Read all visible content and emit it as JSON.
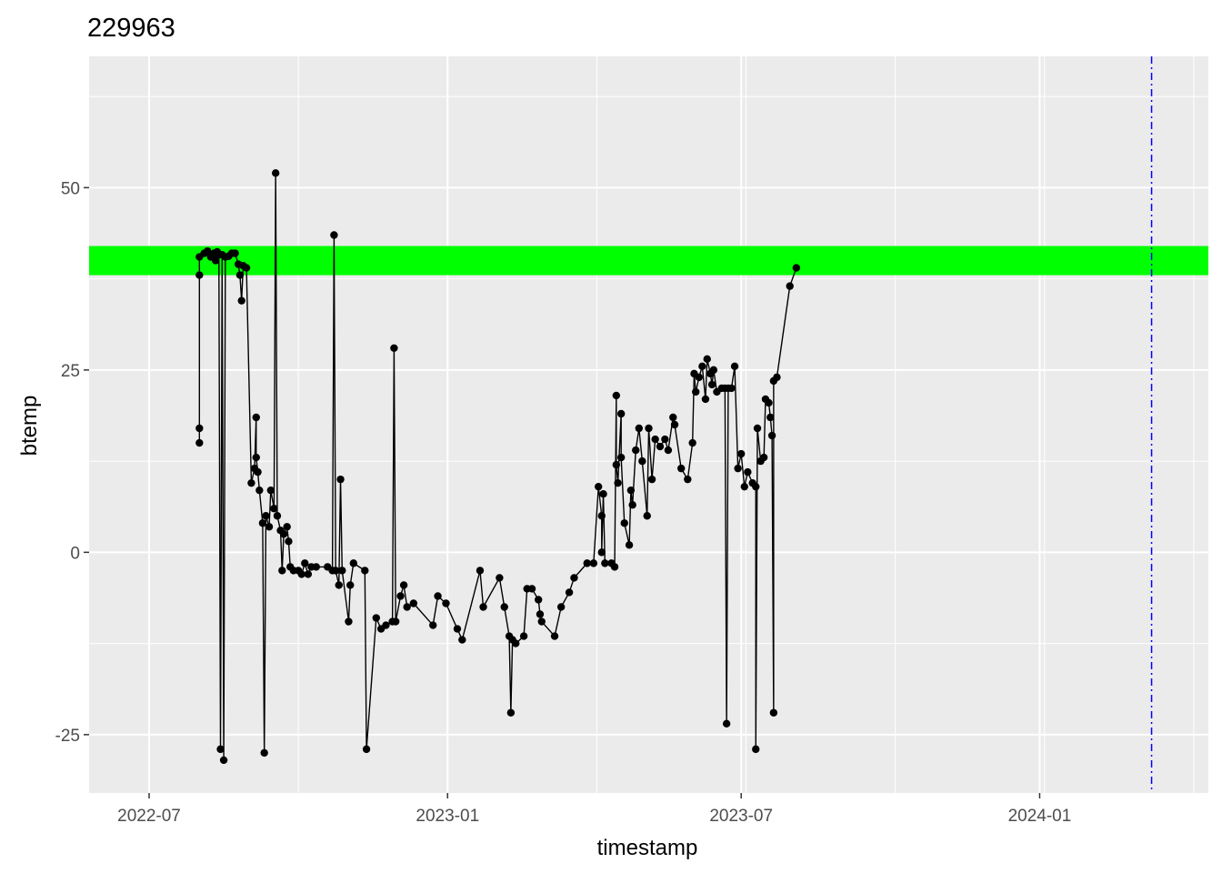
{
  "chart_data": {
    "type": "line",
    "title": "229963",
    "xlabel": "timestamp",
    "ylabel": "btemp",
    "x_type": "date",
    "xlim": [
      "2022-05-25",
      "2024-04-14"
    ],
    "ylim": [
      -33,
      68
    ],
    "x_ticks": [
      {
        "value": "2022-07-01",
        "label": "2022-07"
      },
      {
        "value": "2023-01-01",
        "label": "2023-01"
      },
      {
        "value": "2023-07-01",
        "label": "2023-07"
      },
      {
        "value": "2024-01-01",
        "label": "2024-01"
      }
    ],
    "y_ticks": [
      {
        "value": -25,
        "label": "-25"
      },
      {
        "value": 0,
        "label": "0"
      },
      {
        "value": 25,
        "label": "25"
      },
      {
        "value": 50,
        "label": "50"
      }
    ],
    "grid": true,
    "background": "#ebebeb",
    "band": {
      "ymin": 38,
      "ymax": 42,
      "color": "#00ff00"
    },
    "vline": {
      "x": "2024-03-10",
      "color": "#0000ff",
      "style": "dashdot"
    },
    "series": [
      {
        "color": "#000000",
        "points": [
          [
            "2022-08-01",
            15
          ],
          [
            "2022-08-01",
            17
          ],
          [
            "2022-08-01",
            38
          ],
          [
            "2022-08-01",
            40.5
          ],
          [
            "2022-08-04",
            41
          ],
          [
            "2022-08-06",
            41.3
          ],
          [
            "2022-08-08",
            40.5
          ],
          [
            "2022-08-10",
            41
          ],
          [
            "2022-08-11",
            40
          ],
          [
            "2022-08-12",
            41.2
          ],
          [
            "2022-08-13",
            40.8
          ],
          [
            "2022-08-14",
            -27
          ],
          [
            "2022-08-15",
            40.8
          ],
          [
            "2022-08-16",
            -28.5
          ],
          [
            "2022-08-17",
            40.5
          ],
          [
            "2022-08-19",
            40.6
          ],
          [
            "2022-08-21",
            41
          ],
          [
            "2022-08-23",
            41
          ],
          [
            "2022-08-25",
            39.5
          ],
          [
            "2022-08-26",
            38
          ],
          [
            "2022-08-27",
            34.5
          ],
          [
            "2022-08-28",
            39.3
          ],
          [
            "2022-08-30",
            39
          ],
          [
            "2022-09-02",
            9.5
          ],
          [
            "2022-09-04",
            11.5
          ],
          [
            "2022-09-05",
            18.5
          ],
          [
            "2022-09-05",
            13
          ],
          [
            "2022-09-06",
            11
          ],
          [
            "2022-09-07",
            8.5
          ],
          [
            "2022-09-09",
            4
          ],
          [
            "2022-09-10",
            -27.5
          ],
          [
            "2022-09-11",
            5
          ],
          [
            "2022-09-13",
            3.5
          ],
          [
            "2022-09-14",
            8.5
          ],
          [
            "2022-09-16",
            6
          ],
          [
            "2022-09-17",
            52
          ],
          [
            "2022-09-18",
            5
          ],
          [
            "2022-09-20",
            3
          ],
          [
            "2022-09-21",
            -2.5
          ],
          [
            "2022-09-22",
            2.5
          ],
          [
            "2022-09-24",
            3.5
          ],
          [
            "2022-09-25",
            1.5
          ],
          [
            "2022-09-26",
            -2
          ],
          [
            "2022-09-28",
            -2.5
          ],
          [
            "2022-10-01",
            -2.5
          ],
          [
            "2022-10-03",
            -3
          ],
          [
            "2022-10-05",
            -1.5
          ],
          [
            "2022-10-07",
            -3
          ],
          [
            "2022-10-09",
            -2
          ],
          [
            "2022-10-12",
            -2
          ],
          [
            "2022-10-19",
            -2
          ],
          [
            "2022-10-22",
            -2.5
          ],
          [
            "2022-10-23",
            43.5
          ],
          [
            "2022-10-24",
            -2.5
          ],
          [
            "2022-10-26",
            -4.5
          ],
          [
            "2022-10-27",
            10
          ],
          [
            "2022-10-28",
            -2.5
          ],
          [
            "2022-11-01",
            -9.5
          ],
          [
            "2022-11-02",
            -4.5
          ],
          [
            "2022-11-04",
            -1.5
          ],
          [
            "2022-11-11",
            -2.5
          ],
          [
            "2022-11-12",
            -27
          ],
          [
            "2022-11-18",
            -9
          ],
          [
            "2022-11-21",
            -10.5
          ],
          [
            "2022-11-24",
            -10
          ],
          [
            "2022-11-28",
            -9.5
          ],
          [
            "2022-11-29",
            28
          ],
          [
            "2022-11-30",
            -9.5
          ],
          [
            "2022-12-03",
            -6
          ],
          [
            "2022-12-05",
            -4.5
          ],
          [
            "2022-12-07",
            -7.5
          ],
          [
            "2022-12-11",
            -7
          ],
          [
            "2022-12-23",
            -10
          ],
          [
            "2022-12-26",
            -6
          ],
          [
            "2022-12-31",
            -7
          ],
          [
            "2023-01-07",
            -10.5
          ],
          [
            "2023-01-10",
            -12
          ],
          [
            "2023-01-21",
            -2.5
          ],
          [
            "2023-01-23",
            -7.5
          ],
          [
            "2023-02-02",
            -3.5
          ],
          [
            "2023-02-05",
            -7.5
          ],
          [
            "2023-02-08",
            -11.5
          ],
          [
            "2023-02-09",
            -22
          ],
          [
            "2023-02-10",
            -12
          ],
          [
            "2023-02-12",
            -12.5
          ],
          [
            "2023-02-17",
            -11.5
          ],
          [
            "2023-02-19",
            -5
          ],
          [
            "2023-02-22",
            -5
          ],
          [
            "2023-02-26",
            -6.5
          ],
          [
            "2023-02-27",
            -8.5
          ],
          [
            "2023-02-28",
            -9.5
          ],
          [
            "2023-03-08",
            -11.5
          ],
          [
            "2023-03-12",
            -7.5
          ],
          [
            "2023-03-17",
            -5.5
          ],
          [
            "2023-03-20",
            -3.5
          ],
          [
            "2023-03-28",
            -1.5
          ],
          [
            "2023-04-01",
            -1.5
          ],
          [
            "2023-04-04",
            9
          ],
          [
            "2023-04-06",
            5
          ],
          [
            "2023-04-06",
            0
          ],
          [
            "2023-04-07",
            8
          ],
          [
            "2023-04-08",
            -1.5
          ],
          [
            "2023-04-12",
            -1.5
          ],
          [
            "2023-04-14",
            -2
          ],
          [
            "2023-04-15",
            21.5
          ],
          [
            "2023-04-15",
            12
          ],
          [
            "2023-04-16",
            9.5
          ],
          [
            "2023-04-18",
            19
          ],
          [
            "2023-04-18",
            13
          ],
          [
            "2023-04-20",
            4
          ],
          [
            "2023-04-23",
            1
          ],
          [
            "2023-04-24",
            8.5
          ],
          [
            "2023-04-25",
            6.5
          ],
          [
            "2023-04-27",
            14
          ],
          [
            "2023-04-29",
            17
          ],
          [
            "2023-05-01",
            12.5
          ],
          [
            "2023-05-04",
            5
          ],
          [
            "2023-05-05",
            17
          ],
          [
            "2023-05-07",
            10
          ],
          [
            "2023-05-09",
            15.5
          ],
          [
            "2023-05-12",
            14.5
          ],
          [
            "2023-05-15",
            15.5
          ],
          [
            "2023-05-17",
            14
          ],
          [
            "2023-05-20",
            18.5
          ],
          [
            "2023-05-21",
            17.5
          ],
          [
            "2023-05-25",
            11.5
          ],
          [
            "2023-05-29",
            10
          ],
          [
            "2023-06-01",
            15
          ],
          [
            "2023-06-02",
            24.5
          ],
          [
            "2023-06-03",
            22
          ],
          [
            "2023-06-05",
            24
          ],
          [
            "2023-06-07",
            25.5
          ],
          [
            "2023-06-09",
            21
          ],
          [
            "2023-06-10",
            26.5
          ],
          [
            "2023-06-12",
            24.5
          ],
          [
            "2023-06-13",
            23
          ],
          [
            "2023-06-14",
            25
          ],
          [
            "2023-06-16",
            22
          ],
          [
            "2023-06-19",
            22.5
          ],
          [
            "2023-06-21",
            22.5
          ],
          [
            "2023-06-22",
            -23.5
          ],
          [
            "2023-06-23",
            22.5
          ],
          [
            "2023-06-25",
            22.5
          ],
          [
            "2023-06-27",
            25.5
          ],
          [
            "2023-06-29",
            11.5
          ],
          [
            "2023-07-01",
            13.5
          ],
          [
            "2023-07-03",
            9
          ],
          [
            "2023-07-05",
            11
          ],
          [
            "2023-07-08",
            9.5
          ],
          [
            "2023-07-10",
            9
          ],
          [
            "2023-07-10",
            -27
          ],
          [
            "2023-07-11",
            17
          ],
          [
            "2023-07-13",
            12.5
          ],
          [
            "2023-07-15",
            13
          ],
          [
            "2023-07-16",
            21
          ],
          [
            "2023-07-18",
            20.5
          ],
          [
            "2023-07-19",
            18.5
          ],
          [
            "2023-07-20",
            16
          ],
          [
            "2023-07-21",
            -22
          ],
          [
            "2023-07-21",
            23.5
          ],
          [
            "2023-07-23",
            24
          ],
          [
            "2023-07-31",
            36.5
          ],
          [
            "2023-08-04",
            39
          ]
        ]
      }
    ]
  }
}
